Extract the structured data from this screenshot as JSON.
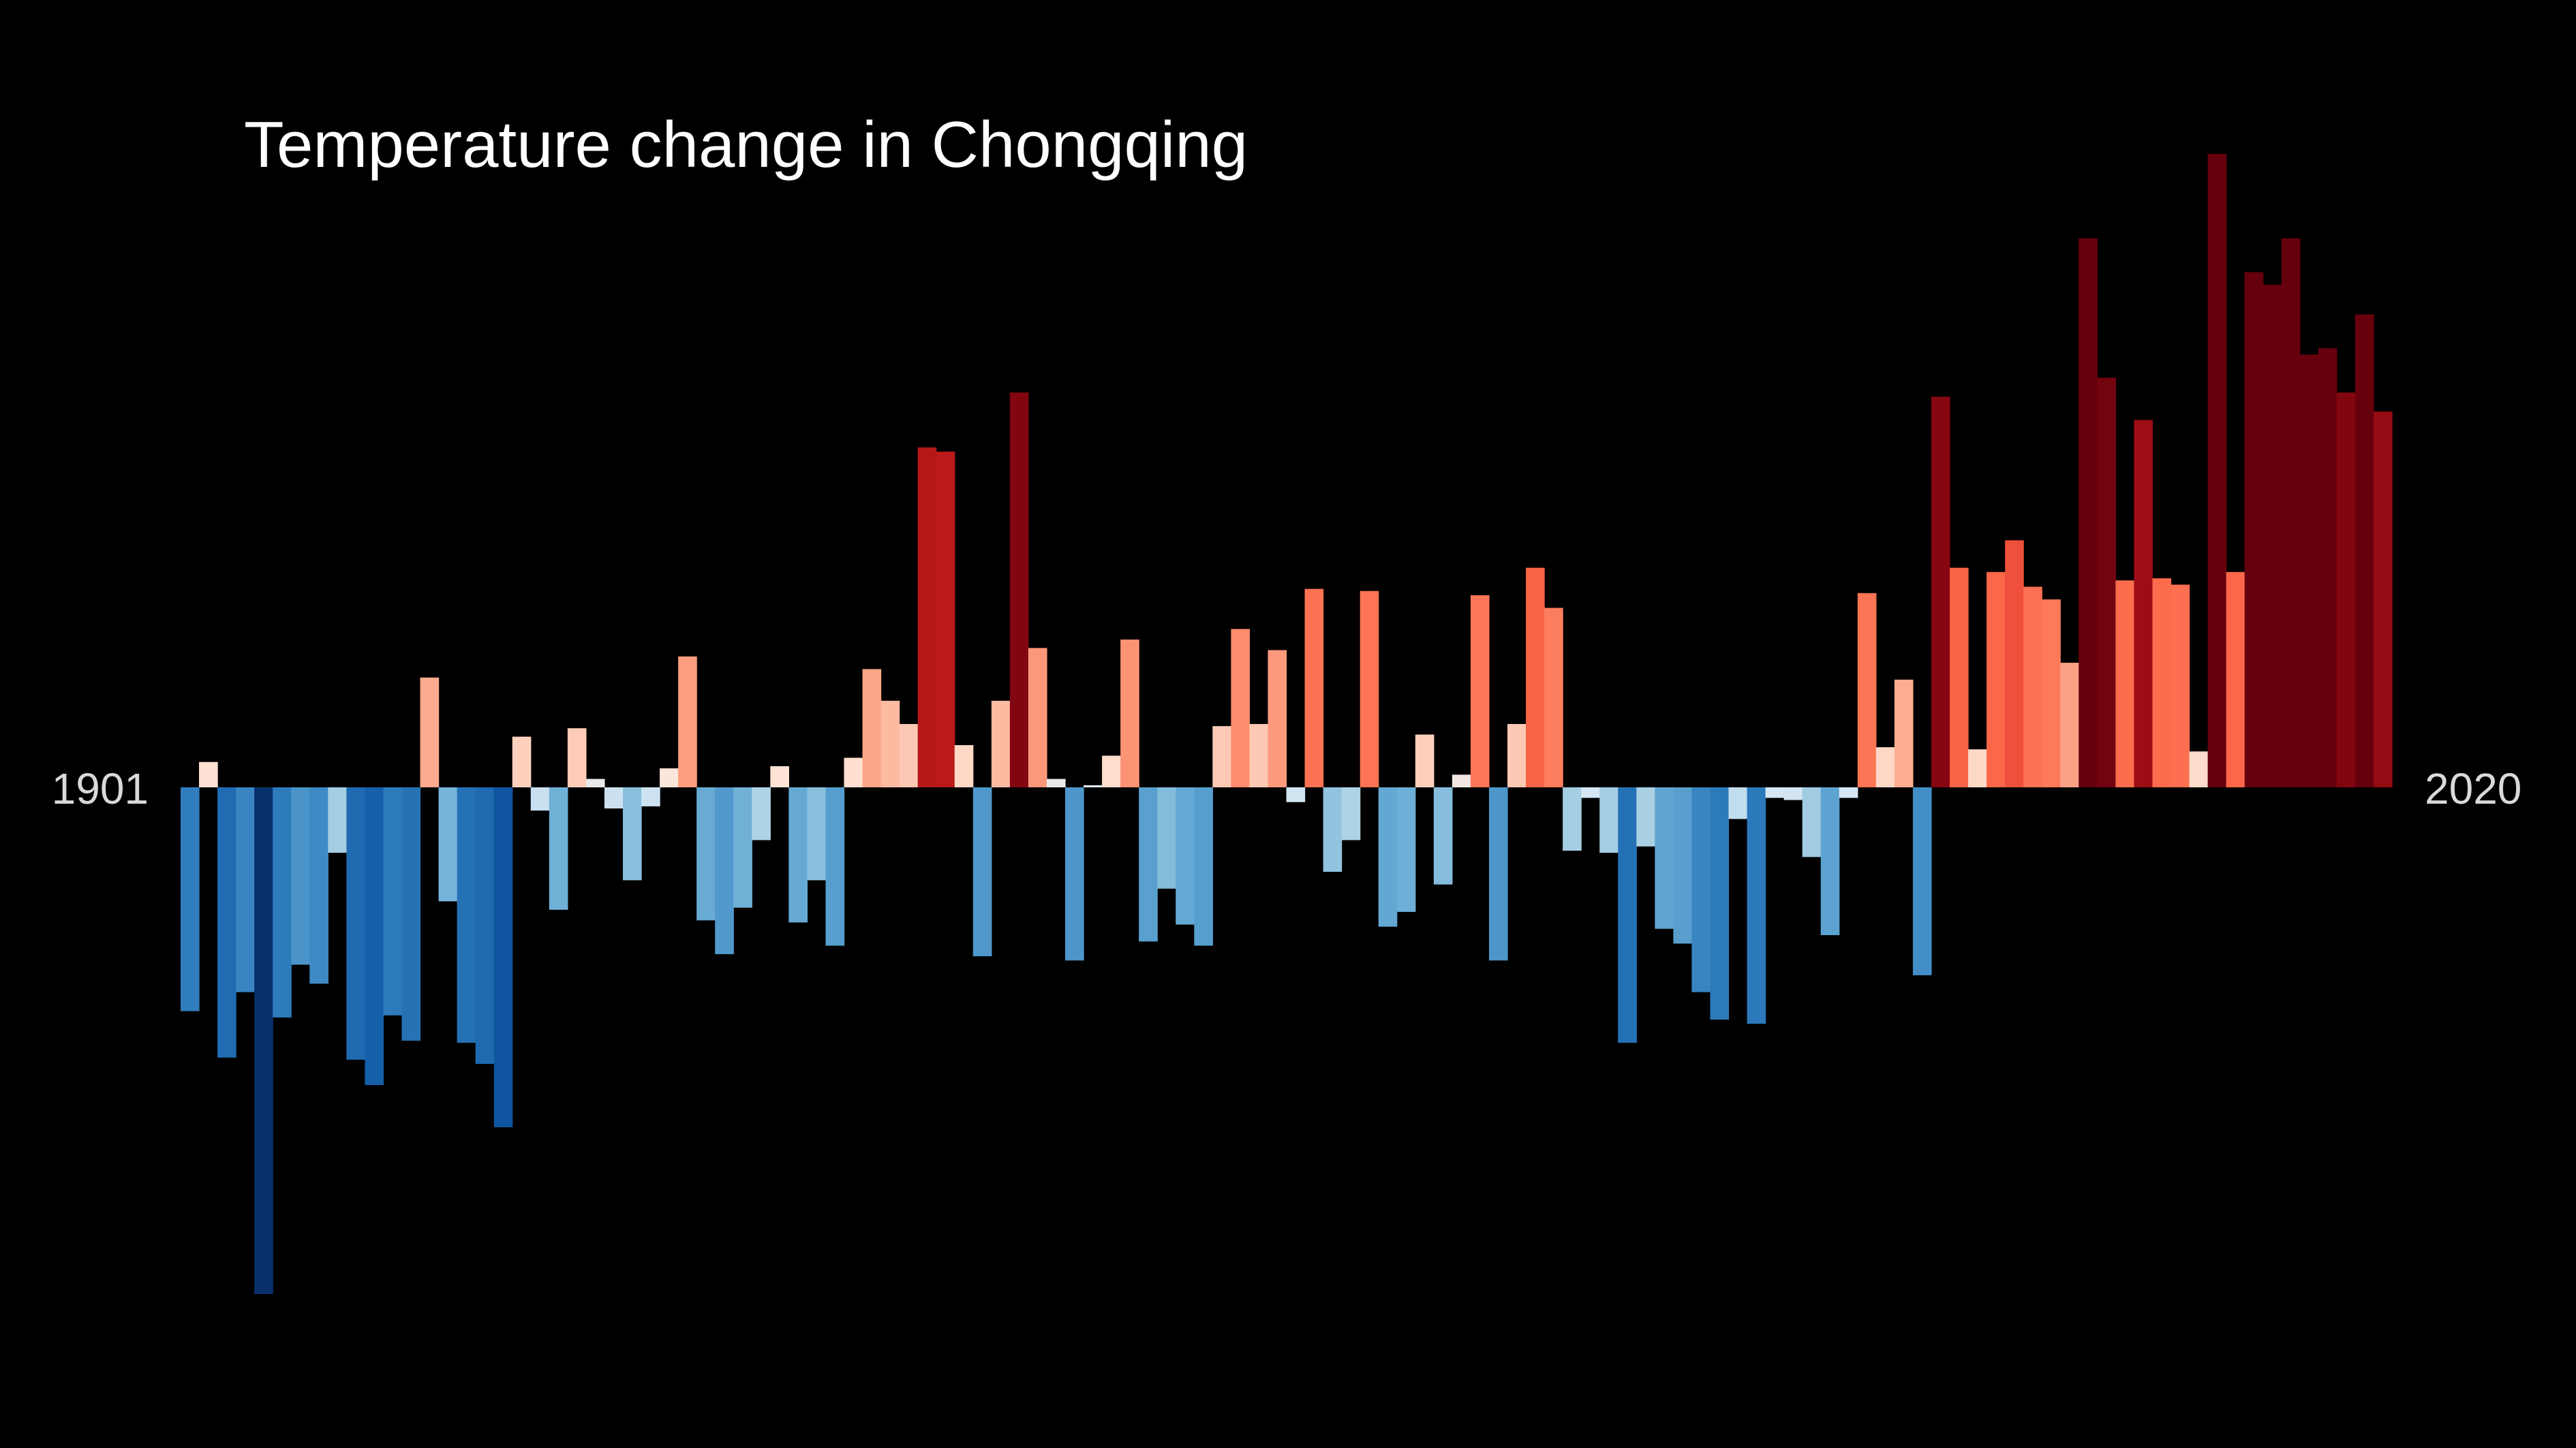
{
  "chart_data": {
    "type": "bar",
    "title": "Temperature change in Chongqing",
    "xlabel": "",
    "ylabel": "",
    "start_year": "1901",
    "end_year": "2020",
    "x": [
      1901,
      1902,
      1903,
      1904,
      1905,
      1906,
      1907,
      1908,
      1909,
      1910,
      1911,
      1912,
      1913,
      1914,
      1915,
      1916,
      1917,
      1918,
      1919,
      1920,
      1921,
      1922,
      1923,
      1924,
      1925,
      1926,
      1927,
      1928,
      1929,
      1930,
      1931,
      1932,
      1933,
      1934,
      1935,
      1936,
      1937,
      1938,
      1939,
      1940,
      1941,
      1942,
      1943,
      1944,
      1945,
      1946,
      1947,
      1948,
      1949,
      1950,
      1951,
      1952,
      1953,
      1954,
      1955,
      1956,
      1957,
      1958,
      1959,
      1960,
      1961,
      1962,
      1963,
      1964,
      1965,
      1966,
      1967,
      1968,
      1969,
      1970,
      1971,
      1972,
      1973,
      1974,
      1975,
      1976,
      1977,
      1978,
      1979,
      1980,
      1981,
      1982,
      1983,
      1984,
      1985,
      1986,
      1987,
      1988,
      1989,
      1990,
      1991,
      1992,
      1993,
      1994,
      1995,
      1996,
      1997,
      1998,
      1999,
      2000,
      2001,
      2002,
      2003,
      2004,
      2005,
      2006,
      2007,
      2008,
      2009,
      2010,
      2011,
      2012,
      2013,
      2014,
      2015,
      2016,
      2017,
      2018,
      2019,
      2020
    ],
    "values": [
      -1.06,
      0.12,
      -1.28,
      -0.97,
      -2.4,
      -1.09,
      -0.84,
      -0.93,
      -0.31,
      -1.29,
      -1.41,
      -1.08,
      -1.2,
      0.52,
      -0.54,
      -1.21,
      -1.31,
      -1.61,
      0.24,
      -0.11,
      -0.58,
      0.28,
      0.04,
      -0.1,
      -0.44,
      -0.09,
      0.09,
      0.62,
      -0.63,
      -0.79,
      -0.57,
      -0.25,
      0.1,
      -0.64,
      -0.44,
      -0.75,
      0.14,
      0.56,
      0.41,
      0.3,
      1.61,
      1.59,
      0.2,
      -0.8,
      0.41,
      1.87,
      0.66,
      0.04,
      -0.82,
      0.01,
      0.15,
      0.7,
      -0.73,
      -0.48,
      -0.65,
      -0.75,
      0.29,
      0.75,
      0.3,
      0.65,
      -0.07,
      0.94,
      -0.4,
      -0.25,
      0.93,
      -0.66,
      -0.59,
      0.25,
      -0.46,
      0.06,
      0.91,
      -0.82,
      0.3,
      1.04,
      0.85,
      -0.3,
      -0.05,
      -0.31,
      -1.21,
      -0.28,
      -0.67,
      -0.74,
      -0.97,
      -1.1,
      -0.15,
      -1.12,
      -0.05,
      -0.06,
      -0.33,
      -0.7,
      -0.05,
      0.92,
      0.19,
      0.51,
      -0.89,
      1.85,
      1.04,
      0.18,
      1.02,
      1.17,
      0.95,
      0.89,
      0.59,
      2.6,
      1.94,
      0.98,
      1.74,
      0.99,
      0.96,
      0.17,
      3.0,
      1.02,
      2.44,
      2.38,
      2.6,
      2.05,
      2.08,
      1.87,
      2.24,
      1.78
    ],
    "color_scale": "red-blue diverging (blue = colder, red = warmer)",
    "ylim": [
      -2.6,
      3.2
    ],
    "grid": false,
    "legend": "none"
  }
}
